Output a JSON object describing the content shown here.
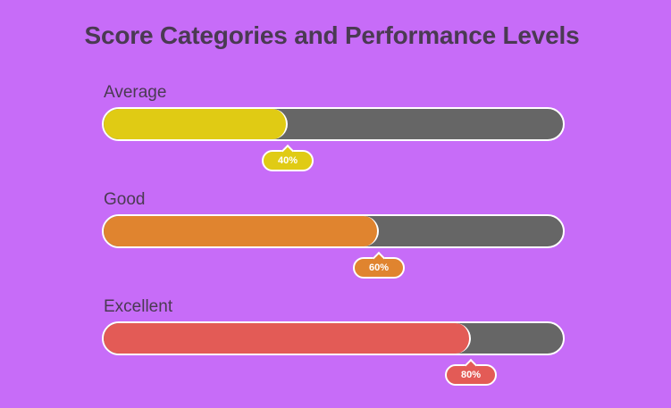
{
  "chart_data": {
    "type": "bar",
    "orientation": "horizontal",
    "title": "Score Categories and Performance Levels",
    "categories": [
      "Average",
      "Good",
      "Excellent"
    ],
    "values": [
      40,
      60,
      80
    ],
    "value_labels": [
      "40%",
      "60%",
      "80%"
    ],
    "unit": "%",
    "xlim": [
      0,
      100
    ],
    "track_color": "#666666",
    "colors": [
      "#e0cb14",
      "#e0842f",
      "#e35b56"
    ],
    "background": "#c76cf8"
  }
}
